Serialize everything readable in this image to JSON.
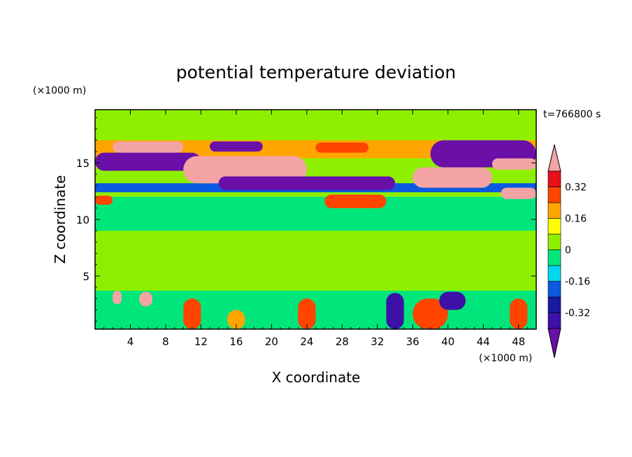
{
  "chart_data": {
    "type": "heatmap",
    "title": "potential temperature deviation",
    "xlabel": "X coordinate",
    "ylabel": "Z coordinate",
    "x_unit": "(×1000 m)",
    "y_unit": "(×1000 m)",
    "time_label": "t=766800 s",
    "xlim": [
      0,
      50
    ],
    "ylim": [
      0.3,
      19.7
    ],
    "x_ticks": [
      4,
      8,
      12,
      16,
      20,
      24,
      28,
      32,
      36,
      40,
      44,
      48
    ],
    "y_ticks": [
      5,
      10,
      15
    ],
    "colorbar": {
      "tick_labels": [
        "0.32",
        "0.16",
        "0",
        "-0.16",
        "-0.32"
      ],
      "tick_values": [
        0.32,
        0.16,
        0,
        -0.16,
        -0.32
      ],
      "levels": [
        -0.4,
        -0.32,
        -0.24,
        -0.16,
        -0.08,
        0,
        0.08,
        0.16,
        0.24,
        0.32,
        0.4
      ],
      "colors": [
        "#6a0fa8",
        "#3d10a8",
        "#1a1aa0",
        "#0a5ae0",
        "#00d8f0",
        "#00e67a",
        "#8ef000",
        "#ffff00",
        "#ffa500",
        "#ff4500",
        "#e8101a",
        "#f4a4a4"
      ]
    },
    "features": [
      {
        "x": [
          0,
          50
        ],
        "z": [
          0.3,
          19.7
        ],
        "value": 0.04
      },
      {
        "x": [
          0,
          50
        ],
        "z": [
          9,
          12
        ],
        "value": -0.03
      },
      {
        "x": [
          0,
          50
        ],
        "z": [
          0.3,
          3.7
        ],
        "value": -0.03
      },
      {
        "x": [
          0,
          50
        ],
        "z": [
          12.4,
          13.2
        ],
        "value": -0.2
      },
      {
        "x": [
          0,
          50
        ],
        "z": [
          15.4,
          17.0
        ],
        "value": 0.2
      },
      {
        "x": [
          0,
          12
        ],
        "z": [
          14.3,
          15.9
        ],
        "value": -0.42
      },
      {
        "x": [
          2,
          10
        ],
        "z": [
          15.9,
          16.9
        ],
        "value": 0.42
      },
      {
        "x": [
          10,
          24
        ],
        "z": [
          13.2,
          15.6
        ],
        "value": 0.42
      },
      {
        "x": [
          14,
          34
        ],
        "z": [
          12.6,
          13.8
        ],
        "value": -0.42
      },
      {
        "x": [
          13,
          19
        ],
        "z": [
          16.0,
          16.9
        ],
        "value": -0.42
      },
      {
        "x": [
          25,
          31
        ],
        "z": [
          15.9,
          16.8
        ],
        "value": 0.3
      },
      {
        "x": [
          36,
          45
        ],
        "z": [
          12.8,
          14.6
        ],
        "value": 0.42
      },
      {
        "x": [
          38,
          50
        ],
        "z": [
          14.6,
          17.0
        ],
        "value": -0.42
      },
      {
        "x": [
          45,
          50
        ],
        "z": [
          14.4,
          15.4
        ],
        "value": 0.42
      },
      {
        "x": [
          46,
          50
        ],
        "z": [
          11.8,
          12.8
        ],
        "value": 0.42
      },
      {
        "x": [
          26,
          33
        ],
        "z": [
          11.0,
          12.2
        ],
        "value": 0.28
      },
      {
        "x": [
          0,
          2
        ],
        "z": [
          11.3,
          12.1
        ],
        "value": 0.28
      },
      {
        "x": [
          2,
          3
        ],
        "z": [
          2.5,
          3.7
        ],
        "value": 0.42
      },
      {
        "x": [
          5,
          6.5
        ],
        "z": [
          2.3,
          3.6
        ],
        "value": 0.42
      },
      {
        "x": [
          10,
          12
        ],
        "z": [
          0.3,
          3.0
        ],
        "value": 0.25
      },
      {
        "x": [
          23,
          25
        ],
        "z": [
          0.3,
          3.0
        ],
        "value": 0.28
      },
      {
        "x": [
          36,
          40
        ],
        "z": [
          0.3,
          3.0
        ],
        "value": 0.28
      },
      {
        "x": [
          47,
          49
        ],
        "z": [
          0.3,
          3.0
        ],
        "value": 0.28
      },
      {
        "x": [
          15,
          17
        ],
        "z": [
          0.3,
          2.0
        ],
        "value": 0.22
      },
      {
        "x": [
          33,
          35
        ],
        "z": [
          0.3,
          3.5
        ],
        "value": -0.35
      },
      {
        "x": [
          39,
          42
        ],
        "z": [
          2.0,
          3.6
        ],
        "value": -0.38
      }
    ]
  }
}
